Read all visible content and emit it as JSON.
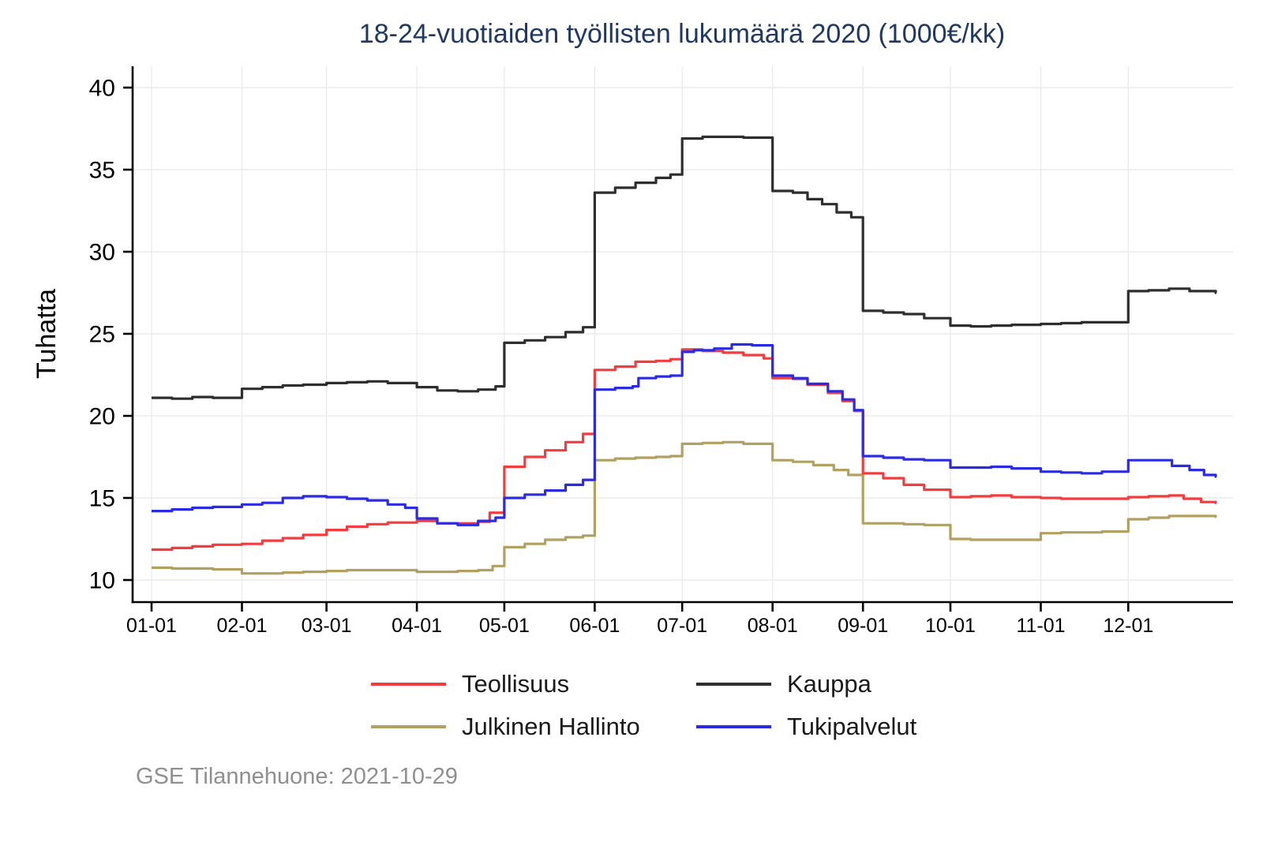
{
  "title": "18-24-vuotiaiden työllisten lukumäärä 2020 (1000€/kk)",
  "footer": "GSE Tilannehuone: 2021-10-29",
  "colors": {
    "title_text": "#1f3864",
    "footer_text": "#8f8f8f",
    "axis": "#000000",
    "grid": "#e8e8e8",
    "teollisuus": "#f23c3e",
    "kauppa": "#2e2e2e",
    "julkinen_hallinto": "#b1a05f",
    "tukipalvelut": "#2b2be2"
  },
  "legend": {
    "items": [
      {
        "label": "Teollisuus",
        "color": "#f23c3e"
      },
      {
        "label": "Kauppa",
        "color": "#2e2e2e"
      },
      {
        "label": "Julkinen Hallinto",
        "color": "#b1a05f"
      },
      {
        "label": "Tukipalvelut",
        "color": "#2b2be2"
      }
    ]
  },
  "chart_data": {
    "type": "line",
    "step": true,
    "title": "18-24-vuotiaiden työllisten lukumäärä 2020 (1000€/kk)",
    "xlabel": "",
    "ylabel": "Tuhatta",
    "ylim": [
      10,
      40
    ],
    "grid": true,
    "legend_position": "bottom",
    "y_ticks": [
      10,
      15,
      20,
      25,
      30,
      35,
      40
    ],
    "x_tick_labels": [
      "01-01",
      "02-01",
      "03-01",
      "04-01",
      "05-01",
      "06-01",
      "07-01",
      "08-01",
      "09-01",
      "10-01",
      "11-01",
      "12-01"
    ],
    "series": [
      {
        "name": "Teollisuus",
        "color": "#f23c3e",
        "points": [
          [
            "01-01",
            11.85
          ],
          [
            "01-08",
            11.95
          ],
          [
            "01-15",
            12.05
          ],
          [
            "01-22",
            12.15
          ],
          [
            "02-01",
            12.2
          ],
          [
            "02-08",
            12.4
          ],
          [
            "02-15",
            12.55
          ],
          [
            "02-22",
            12.75
          ],
          [
            "03-01",
            13.05
          ],
          [
            "03-08",
            13.25
          ],
          [
            "03-15",
            13.4
          ],
          [
            "03-22",
            13.5
          ],
          [
            "04-01",
            13.6
          ],
          [
            "04-08",
            13.45
          ],
          [
            "04-15",
            13.45
          ],
          [
            "04-22",
            13.55
          ],
          [
            "04-26",
            14.1
          ],
          [
            "05-01",
            16.9
          ],
          [
            "05-08",
            17.5
          ],
          [
            "05-15",
            17.9
          ],
          [
            "05-22",
            18.4
          ],
          [
            "05-28",
            18.9
          ],
          [
            "06-01",
            22.8
          ],
          [
            "06-08",
            23.0
          ],
          [
            "06-15",
            23.3
          ],
          [
            "06-22",
            23.35
          ],
          [
            "06-27",
            23.45
          ],
          [
            "07-01",
            24.05
          ],
          [
            "07-08",
            23.95
          ],
          [
            "07-15",
            23.85
          ],
          [
            "07-22",
            23.7
          ],
          [
            "07-29",
            23.5
          ],
          [
            "08-01",
            22.3
          ],
          [
            "08-08",
            22.25
          ],
          [
            "08-13",
            21.9
          ],
          [
            "08-20",
            21.4
          ],
          [
            "08-25",
            20.9
          ],
          [
            "08-29",
            20.3
          ],
          [
            "09-01",
            16.5
          ],
          [
            "09-08",
            16.2
          ],
          [
            "09-15",
            15.8
          ],
          [
            "09-22",
            15.5
          ],
          [
            "10-01",
            15.05
          ],
          [
            "10-08",
            15.1
          ],
          [
            "10-15",
            15.15
          ],
          [
            "10-22",
            15.05
          ],
          [
            "11-01",
            15.0
          ],
          [
            "11-08",
            14.95
          ],
          [
            "11-15",
            14.95
          ],
          [
            "11-22",
            14.95
          ],
          [
            "12-01",
            15.05
          ],
          [
            "12-08",
            15.1
          ],
          [
            "12-15",
            15.15
          ],
          [
            "12-20",
            14.95
          ],
          [
            "12-26",
            14.75
          ],
          [
            "12-31",
            14.7
          ]
        ]
      },
      {
        "name": "Kauppa",
        "color": "#2e2e2e",
        "points": [
          [
            "01-01",
            21.1
          ],
          [
            "01-08",
            21.05
          ],
          [
            "01-15",
            21.15
          ],
          [
            "01-22",
            21.1
          ],
          [
            "02-01",
            21.65
          ],
          [
            "02-08",
            21.75
          ],
          [
            "02-15",
            21.85
          ],
          [
            "02-22",
            21.9
          ],
          [
            "03-01",
            22.0
          ],
          [
            "03-08",
            22.05
          ],
          [
            "03-15",
            22.1
          ],
          [
            "03-22",
            22.0
          ],
          [
            "04-01",
            21.75
          ],
          [
            "04-08",
            21.55
          ],
          [
            "04-15",
            21.5
          ],
          [
            "04-22",
            21.6
          ],
          [
            "04-28",
            21.8
          ],
          [
            "05-01",
            24.45
          ],
          [
            "05-08",
            24.6
          ],
          [
            "05-15",
            24.8
          ],
          [
            "05-22",
            25.1
          ],
          [
            "05-28",
            25.4
          ],
          [
            "06-01",
            33.6
          ],
          [
            "06-08",
            33.9
          ],
          [
            "06-15",
            34.2
          ],
          [
            "06-22",
            34.5
          ],
          [
            "06-27",
            34.7
          ],
          [
            "07-01",
            36.9
          ],
          [
            "07-08",
            37.0
          ],
          [
            "07-15",
            37.0
          ],
          [
            "07-22",
            36.95
          ],
          [
            "08-01",
            33.7
          ],
          [
            "08-08",
            33.6
          ],
          [
            "08-13",
            33.2
          ],
          [
            "08-18",
            32.9
          ],
          [
            "08-23",
            32.4
          ],
          [
            "08-28",
            32.1
          ],
          [
            "09-01",
            26.4
          ],
          [
            "09-08",
            26.3
          ],
          [
            "09-15",
            26.2
          ],
          [
            "09-22",
            25.95
          ],
          [
            "10-01",
            25.5
          ],
          [
            "10-08",
            25.45
          ],
          [
            "10-15",
            25.5
          ],
          [
            "10-22",
            25.55
          ],
          [
            "11-01",
            25.6
          ],
          [
            "11-08",
            25.65
          ],
          [
            "11-15",
            25.7
          ],
          [
            "11-22",
            25.7
          ],
          [
            "12-01",
            27.6
          ],
          [
            "12-08",
            27.65
          ],
          [
            "12-15",
            27.75
          ],
          [
            "12-22",
            27.6
          ],
          [
            "12-31",
            27.5
          ]
        ]
      },
      {
        "name": "Julkinen Hallinto",
        "color": "#b1a05f",
        "points": [
          [
            "01-01",
            10.75
          ],
          [
            "01-08",
            10.7
          ],
          [
            "01-15",
            10.7
          ],
          [
            "01-22",
            10.65
          ],
          [
            "02-01",
            10.4
          ],
          [
            "02-08",
            10.4
          ],
          [
            "02-15",
            10.45
          ],
          [
            "02-22",
            10.5
          ],
          [
            "03-01",
            10.55
          ],
          [
            "03-08",
            10.6
          ],
          [
            "03-15",
            10.6
          ],
          [
            "03-22",
            10.6
          ],
          [
            "04-01",
            10.5
          ],
          [
            "04-08",
            10.5
          ],
          [
            "04-15",
            10.55
          ],
          [
            "04-22",
            10.6
          ],
          [
            "04-27",
            10.85
          ],
          [
            "05-01",
            12.0
          ],
          [
            "05-08",
            12.2
          ],
          [
            "05-15",
            12.45
          ],
          [
            "05-22",
            12.6
          ],
          [
            "05-28",
            12.7
          ],
          [
            "06-01",
            17.3
          ],
          [
            "06-08",
            17.4
          ],
          [
            "06-15",
            17.45
          ],
          [
            "06-22",
            17.5
          ],
          [
            "06-27",
            17.55
          ],
          [
            "07-01",
            18.3
          ],
          [
            "07-08",
            18.35
          ],
          [
            "07-15",
            18.4
          ],
          [
            "07-22",
            18.3
          ],
          [
            "08-01",
            17.3
          ],
          [
            "08-08",
            17.2
          ],
          [
            "08-15",
            17.0
          ],
          [
            "08-22",
            16.7
          ],
          [
            "08-27",
            16.4
          ],
          [
            "09-01",
            13.45
          ],
          [
            "09-08",
            13.45
          ],
          [
            "09-15",
            13.4
          ],
          [
            "09-22",
            13.35
          ],
          [
            "10-01",
            12.5
          ],
          [
            "10-08",
            12.45
          ],
          [
            "10-15",
            12.45
          ],
          [
            "10-22",
            12.45
          ],
          [
            "11-01",
            12.85
          ],
          [
            "11-08",
            12.9
          ],
          [
            "11-15",
            12.9
          ],
          [
            "11-22",
            12.95
          ],
          [
            "12-01",
            13.7
          ],
          [
            "12-08",
            13.8
          ],
          [
            "12-15",
            13.9
          ],
          [
            "12-22",
            13.9
          ],
          [
            "12-31",
            13.85
          ]
        ]
      },
      {
        "name": "Tukipalvelut",
        "color": "#2b2be2",
        "points": [
          [
            "01-01",
            14.2
          ],
          [
            "01-08",
            14.3
          ],
          [
            "01-15",
            14.4
          ],
          [
            "01-22",
            14.45
          ],
          [
            "02-01",
            14.6
          ],
          [
            "02-08",
            14.7
          ],
          [
            "02-15",
            15.0
          ],
          [
            "02-22",
            15.1
          ],
          [
            "03-01",
            15.05
          ],
          [
            "03-08",
            14.95
          ],
          [
            "03-15",
            14.85
          ],
          [
            "03-22",
            14.6
          ],
          [
            "03-28",
            14.4
          ],
          [
            "04-01",
            13.75
          ],
          [
            "04-08",
            13.45
          ],
          [
            "04-15",
            13.35
          ],
          [
            "04-22",
            13.6
          ],
          [
            "04-28",
            13.8
          ],
          [
            "05-01",
            15.0
          ],
          [
            "05-08",
            15.2
          ],
          [
            "05-15",
            15.45
          ],
          [
            "05-22",
            15.8
          ],
          [
            "05-28",
            16.1
          ],
          [
            "06-01",
            21.6
          ],
          [
            "06-08",
            21.7
          ],
          [
            "06-14",
            21.8
          ],
          [
            "06-16",
            22.3
          ],
          [
            "06-22",
            22.4
          ],
          [
            "06-27",
            22.45
          ],
          [
            "07-01",
            23.9
          ],
          [
            "07-05",
            24.0
          ],
          [
            "07-12",
            24.1
          ],
          [
            "07-18",
            24.35
          ],
          [
            "07-25",
            24.3
          ],
          [
            "08-01",
            22.45
          ],
          [
            "08-08",
            22.3
          ],
          [
            "08-13",
            21.95
          ],
          [
            "08-20",
            21.5
          ],
          [
            "08-25",
            21.0
          ],
          [
            "08-29",
            20.35
          ],
          [
            "09-01",
            17.55
          ],
          [
            "09-08",
            17.45
          ],
          [
            "09-15",
            17.35
          ],
          [
            "09-22",
            17.3
          ],
          [
            "10-01",
            16.85
          ],
          [
            "10-08",
            16.85
          ],
          [
            "10-15",
            16.9
          ],
          [
            "10-22",
            16.8
          ],
          [
            "11-01",
            16.6
          ],
          [
            "11-08",
            16.55
          ],
          [
            "11-15",
            16.5
          ],
          [
            "11-22",
            16.6
          ],
          [
            "12-01",
            17.3
          ],
          [
            "12-08",
            17.3
          ],
          [
            "12-16",
            16.95
          ],
          [
            "12-22",
            16.7
          ],
          [
            "12-27",
            16.4
          ],
          [
            "12-31",
            16.3
          ]
        ]
      }
    ]
  }
}
